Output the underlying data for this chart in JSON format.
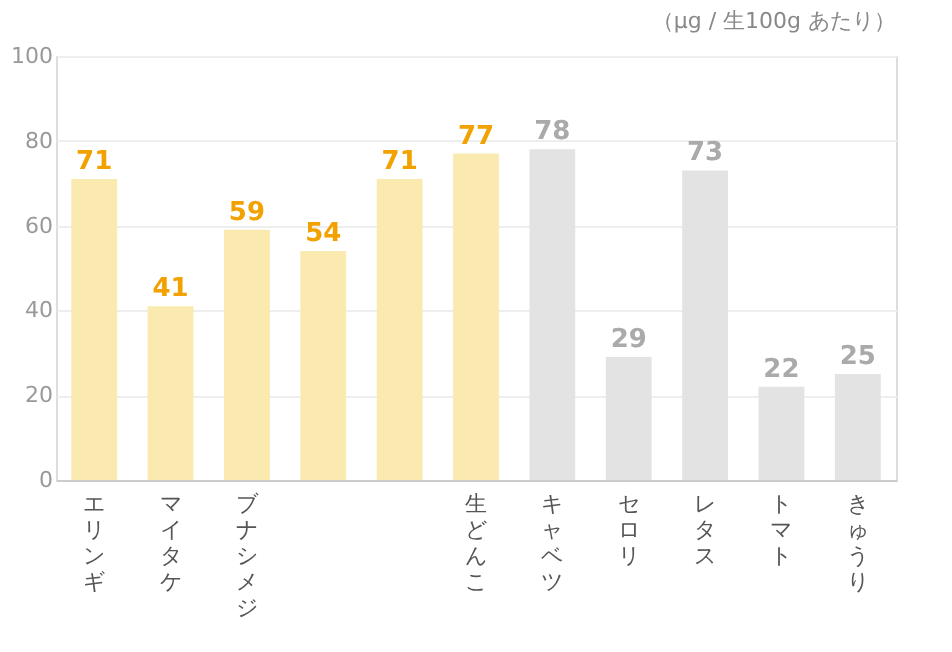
{
  "chart_data": {
    "type": "bar",
    "annotations": [
      "（μg / 生100g あたり）"
    ],
    "categories": [
      "エリンギ",
      "マイタケ",
      "ブナシメジ",
      null,
      null,
      "生どんこ",
      "キャベツ",
      "セロリ",
      "レタス",
      "トマト",
      "きゅうり"
    ],
    "values": [
      71,
      41,
      59,
      54,
      71,
      77,
      78,
      29,
      73,
      22,
      25
    ],
    "colors": [
      "#faeab0",
      "#faeab0",
      "#faeab0",
      "#faeab0",
      "#faeab0",
      "#faeab0",
      "#e3e3e3",
      "#e3e3e3",
      "#e3e3e3",
      "#e3e3e3",
      "#e3e3e3"
    ],
    "ylim": [
      0,
      100
    ],
    "yticks": [
      0,
      20,
      40,
      60,
      80,
      100
    ],
    "grid": "y",
    "data_labels": true
  }
}
